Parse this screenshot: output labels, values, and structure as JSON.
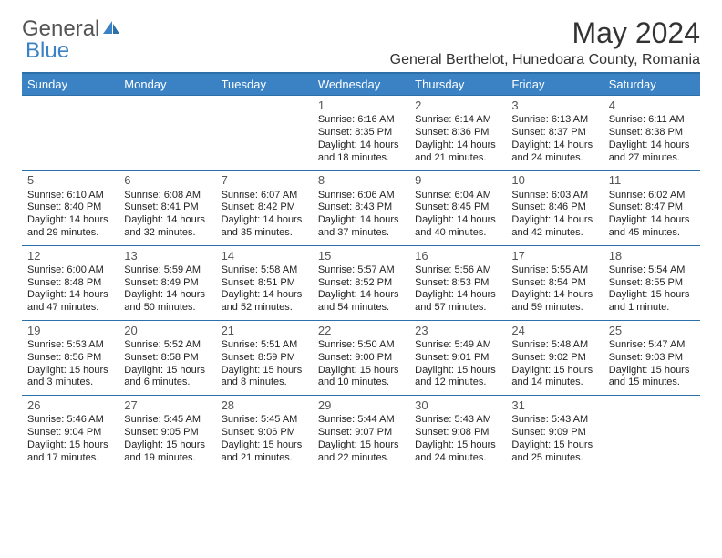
{
  "logo": {
    "part1": "General",
    "part2": "Blue"
  },
  "title": "May 2024",
  "location": "General Berthelot, Hunedoara County, Romania",
  "colors": {
    "header_bg": "#3b82c4",
    "header_text": "#ffffff",
    "border": "#2d6fa8",
    "logo_primary": "#555555",
    "logo_accent": "#3b82c4",
    "body_text": "#222222",
    "page_bg": "#ffffff"
  },
  "typography": {
    "title_fontsize": 32,
    "location_fontsize": 16,
    "weekday_fontsize": 13,
    "daynum_fontsize": 13,
    "body_fontsize": 11,
    "logo_fontsize": 24
  },
  "weekdays": [
    "Sunday",
    "Monday",
    "Tuesday",
    "Wednesday",
    "Thursday",
    "Friday",
    "Saturday"
  ],
  "weeks": [
    [
      null,
      null,
      null,
      {
        "n": "1",
        "sr": "6:16 AM",
        "ss": "8:35 PM",
        "dl1": "14 hours",
        "dl2": "and 18 minutes."
      },
      {
        "n": "2",
        "sr": "6:14 AM",
        "ss": "8:36 PM",
        "dl1": "14 hours",
        "dl2": "and 21 minutes."
      },
      {
        "n": "3",
        "sr": "6:13 AM",
        "ss": "8:37 PM",
        "dl1": "14 hours",
        "dl2": "and 24 minutes."
      },
      {
        "n": "4",
        "sr": "6:11 AM",
        "ss": "8:38 PM",
        "dl1": "14 hours",
        "dl2": "and 27 minutes."
      }
    ],
    [
      {
        "n": "5",
        "sr": "6:10 AM",
        "ss": "8:40 PM",
        "dl1": "14 hours",
        "dl2": "and 29 minutes."
      },
      {
        "n": "6",
        "sr": "6:08 AM",
        "ss": "8:41 PM",
        "dl1": "14 hours",
        "dl2": "and 32 minutes."
      },
      {
        "n": "7",
        "sr": "6:07 AM",
        "ss": "8:42 PM",
        "dl1": "14 hours",
        "dl2": "and 35 minutes."
      },
      {
        "n": "8",
        "sr": "6:06 AM",
        "ss": "8:43 PM",
        "dl1": "14 hours",
        "dl2": "and 37 minutes."
      },
      {
        "n": "9",
        "sr": "6:04 AM",
        "ss": "8:45 PM",
        "dl1": "14 hours",
        "dl2": "and 40 minutes."
      },
      {
        "n": "10",
        "sr": "6:03 AM",
        "ss": "8:46 PM",
        "dl1": "14 hours",
        "dl2": "and 42 minutes."
      },
      {
        "n": "11",
        "sr": "6:02 AM",
        "ss": "8:47 PM",
        "dl1": "14 hours",
        "dl2": "and 45 minutes."
      }
    ],
    [
      {
        "n": "12",
        "sr": "6:00 AM",
        "ss": "8:48 PM",
        "dl1": "14 hours",
        "dl2": "and 47 minutes."
      },
      {
        "n": "13",
        "sr": "5:59 AM",
        "ss": "8:49 PM",
        "dl1": "14 hours",
        "dl2": "and 50 minutes."
      },
      {
        "n": "14",
        "sr": "5:58 AM",
        "ss": "8:51 PM",
        "dl1": "14 hours",
        "dl2": "and 52 minutes."
      },
      {
        "n": "15",
        "sr": "5:57 AM",
        "ss": "8:52 PM",
        "dl1": "14 hours",
        "dl2": "and 54 minutes."
      },
      {
        "n": "16",
        "sr": "5:56 AM",
        "ss": "8:53 PM",
        "dl1": "14 hours",
        "dl2": "and 57 minutes."
      },
      {
        "n": "17",
        "sr": "5:55 AM",
        "ss": "8:54 PM",
        "dl1": "14 hours",
        "dl2": "and 59 minutes."
      },
      {
        "n": "18",
        "sr": "5:54 AM",
        "ss": "8:55 PM",
        "dl1": "15 hours",
        "dl2": "and 1 minute."
      }
    ],
    [
      {
        "n": "19",
        "sr": "5:53 AM",
        "ss": "8:56 PM",
        "dl1": "15 hours",
        "dl2": "and 3 minutes."
      },
      {
        "n": "20",
        "sr": "5:52 AM",
        "ss": "8:58 PM",
        "dl1": "15 hours",
        "dl2": "and 6 minutes."
      },
      {
        "n": "21",
        "sr": "5:51 AM",
        "ss": "8:59 PM",
        "dl1": "15 hours",
        "dl2": "and 8 minutes."
      },
      {
        "n": "22",
        "sr": "5:50 AM",
        "ss": "9:00 PM",
        "dl1": "15 hours",
        "dl2": "and 10 minutes."
      },
      {
        "n": "23",
        "sr": "5:49 AM",
        "ss": "9:01 PM",
        "dl1": "15 hours",
        "dl2": "and 12 minutes."
      },
      {
        "n": "24",
        "sr": "5:48 AM",
        "ss": "9:02 PM",
        "dl1": "15 hours",
        "dl2": "and 14 minutes."
      },
      {
        "n": "25",
        "sr": "5:47 AM",
        "ss": "9:03 PM",
        "dl1": "15 hours",
        "dl2": "and 15 minutes."
      }
    ],
    [
      {
        "n": "26",
        "sr": "5:46 AM",
        "ss": "9:04 PM",
        "dl1": "15 hours",
        "dl2": "and 17 minutes."
      },
      {
        "n": "27",
        "sr": "5:45 AM",
        "ss": "9:05 PM",
        "dl1": "15 hours",
        "dl2": "and 19 minutes."
      },
      {
        "n": "28",
        "sr": "5:45 AM",
        "ss": "9:06 PM",
        "dl1": "15 hours",
        "dl2": "and 21 minutes."
      },
      {
        "n": "29",
        "sr": "5:44 AM",
        "ss": "9:07 PM",
        "dl1": "15 hours",
        "dl2": "and 22 minutes."
      },
      {
        "n": "30",
        "sr": "5:43 AM",
        "ss": "9:08 PM",
        "dl1": "15 hours",
        "dl2": "and 24 minutes."
      },
      {
        "n": "31",
        "sr": "5:43 AM",
        "ss": "9:09 PM",
        "dl1": "15 hours",
        "dl2": "and 25 minutes."
      },
      null
    ]
  ]
}
